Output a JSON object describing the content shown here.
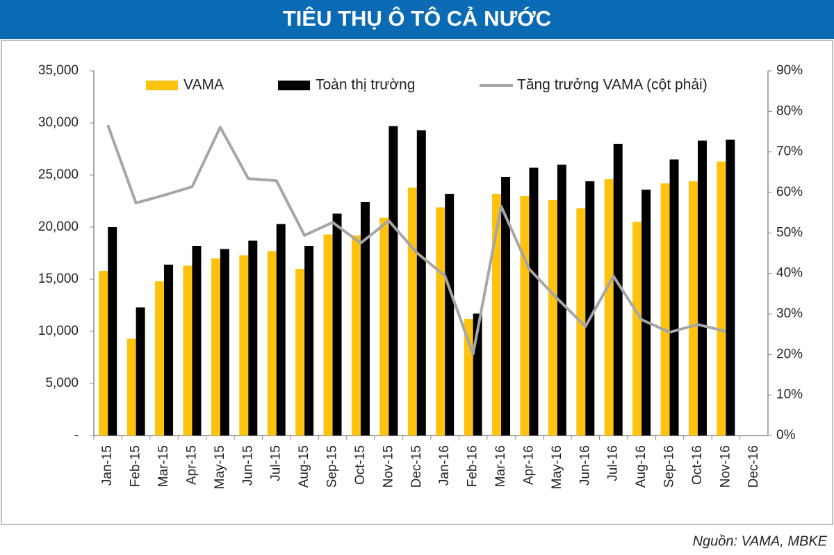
{
  "chart_data": {
    "type": "bar-line",
    "title": "TIÊU THỤ Ô TÔ CẢ NƯỚC",
    "source": "Nguồn:  VAMA, MBKE",
    "categories": [
      "Jan-15",
      "Feb-15",
      "Mar-15",
      "Apr-15",
      "May-15",
      "Jun-15",
      "Jul-15",
      "Aug-15",
      "Sep-15",
      "Oct-15",
      "Nov-15",
      "Dec-15",
      "Jan-16",
      "Feb-16",
      "Mar-16",
      "Apr-16",
      "May-16",
      "Jun-16",
      "Jul-16",
      "Aug-16",
      "Sep-16",
      "Oct-16",
      "Nov-16",
      "Dec-16"
    ],
    "series": [
      {
        "name": "VAMA",
        "color": "#ffc20e",
        "values": [
          15800,
          9300,
          14800,
          16300,
          17000,
          17300,
          17700,
          16000,
          19300,
          19200,
          20900,
          23800,
          21900,
          11200,
          23200,
          23000,
          22600,
          21800,
          24600,
          20500,
          24200,
          24400,
          26300,
          null
        ]
      },
      {
        "name": "Toàn thị trường",
        "color": "#000000",
        "values": [
          20000,
          12300,
          16400,
          18200,
          17900,
          18700,
          20300,
          18200,
          21300,
          22400,
          29700,
          29300,
          23200,
          11700,
          24800,
          25700,
          26000,
          24400,
          28000,
          23600,
          26500,
          28300,
          28400,
          null
        ]
      },
      {
        "name": "Tăng trưởng VAMA (cột phải)",
        "color": "#a6a6a6",
        "axis": "y2",
        "values": [
          76.6,
          57.4,
          59.3,
          61.4,
          76.1,
          63.4,
          62.9,
          49.4,
          52.6,
          47.5,
          53,
          45.1,
          39.4,
          20.1,
          56.6,
          41.1,
          33.8,
          26.9,
          39.3,
          28.6,
          25.5,
          27.4,
          25.7,
          null
        ]
      }
    ],
    "ylim": [
      0,
      35000
    ],
    "yticks": [
      {
        "value": 0,
        "label": "-"
      },
      {
        "value": 5000,
        "label": "5,000"
      },
      {
        "value": 10000,
        "label": "10,000"
      },
      {
        "value": 15000,
        "label": "15,000"
      },
      {
        "value": 20000,
        "label": "20,000"
      },
      {
        "value": 25000,
        "label": "25,000"
      },
      {
        "value": 30000,
        "label": "30,000"
      },
      {
        "value": 35000,
        "label": "35,000"
      }
    ],
    "y2lim": [
      0,
      90
    ],
    "y2ticks": [
      {
        "value": 0,
        "label": "0%"
      },
      {
        "value": 10,
        "label": "10%"
      },
      {
        "value": 20,
        "label": "20%"
      },
      {
        "value": 30,
        "label": "30%"
      },
      {
        "value": 40,
        "label": "40%"
      },
      {
        "value": 50,
        "label": "50%"
      },
      {
        "value": 60,
        "label": "60%"
      },
      {
        "value": 70,
        "label": "70%"
      },
      {
        "value": 80,
        "label": "80%"
      },
      {
        "value": 90,
        "label": "90%"
      }
    ],
    "legend": "top",
    "grid": false
  }
}
